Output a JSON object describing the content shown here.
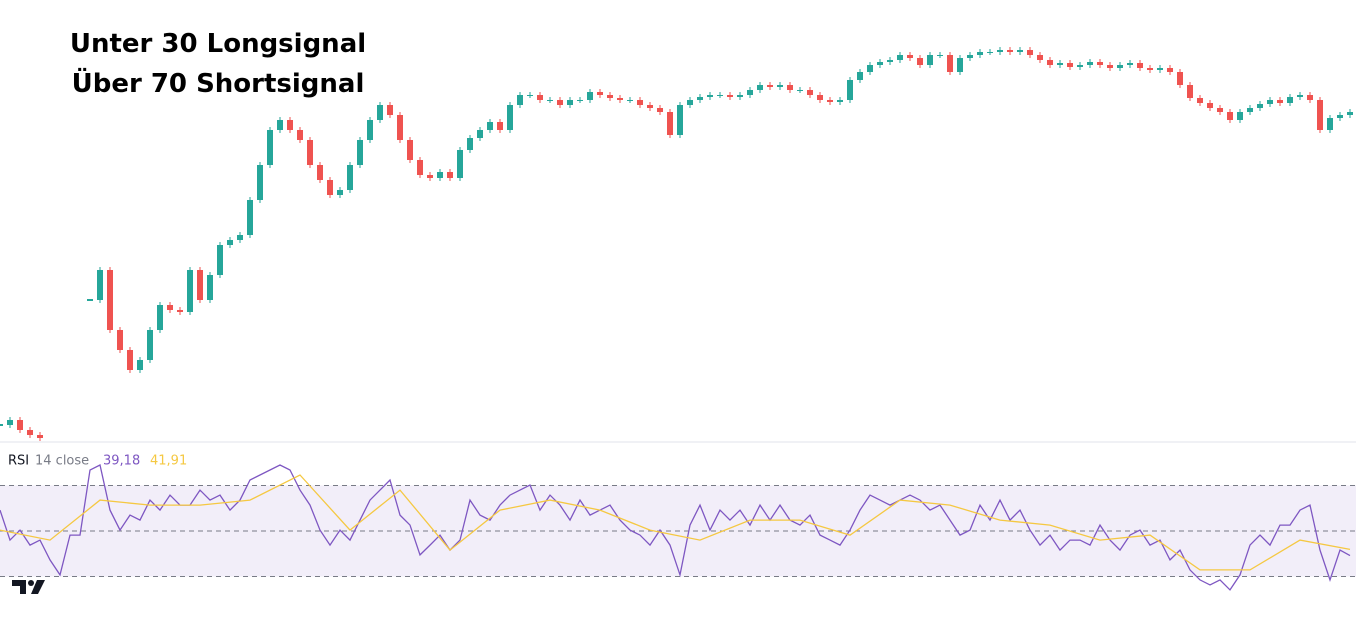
{
  "chart_data": [
    {
      "type": "candlestick",
      "annotations": [
        "Unter 30 Longsignal",
        "Über 70 Shortsignal"
      ],
      "up_color": "#26a69a",
      "down_color": "#ef5350",
      "ylim": [
        0,
        111.25
      ],
      "values": [
        5,
        6.25,
        3.75,
        2.5,
        1.75,
        null,
        null,
        null,
        null,
        36.25,
        43.75,
        28.75,
        23.75,
        18.75,
        21.25,
        28.75,
        35,
        33.75,
        33.25,
        43.75,
        36.25,
        42.5,
        50,
        51.25,
        52.5,
        61.25,
        70,
        78.75,
        81.25,
        78.75,
        76.25,
        70,
        66.25,
        62.5,
        63.75,
        70,
        76.25,
        81.25,
        85,
        82.5,
        76.25,
        71.25,
        67.5,
        66.75,
        68.25,
        66.75,
        73.75,
        76.75,
        78.75,
        80.75,
        78.75,
        85,
        87.5,
        87.5,
        86.25,
        86.25,
        85,
        86.25,
        86.25,
        88.25,
        87.5,
        86.75,
        86.25,
        86.25,
        85,
        84.25,
        83.25,
        77.5,
        85,
        86.25,
        87,
        87.5,
        87.5,
        87,
        87.5,
        88.75,
        90,
        89.5,
        90,
        88.75,
        88.75,
        87.5,
        86.25,
        85.75,
        86.25,
        91.25,
        93.25,
        95,
        95.75,
        96.25,
        97.5,
        96.75,
        95,
        97.5,
        97.5,
        93.25,
        96.75,
        97.5,
        98.25,
        98.25,
        98.75,
        98.25,
        98.75,
        97.5,
        96.25,
        95,
        95.5,
        94.5,
        95,
        95.75,
        95,
        94.25,
        95,
        95.5,
        94.25,
        93.75,
        94.25,
        93.25,
        90,
        86.75,
        85.5,
        84.25,
        83.25,
        81.25,
        83.25,
        84.25,
        85.25,
        86.25,
        85.5,
        87,
        87.5,
        86.25,
        78.75,
        81.75,
        82.5,
        83.25
      ]
    },
    {
      "type": "line",
      "title": "RSI",
      "params": "14 close",
      "ylim": [
        10,
        90
      ],
      "levels": [
        30,
        50,
        70
      ],
      "band_color": "#7e57c2",
      "series": [
        {
          "color": "#7e57c2",
          "last_label": "39,18",
          "values": [
            59.2,
            46.0,
            50.4,
            43.8,
            46.0,
            37.3,
            30.7,
            48.2,
            48.2,
            76.8,
            79.0,
            59.2,
            50.4,
            57.0,
            54.8,
            63.6,
            59.2,
            65.8,
            61.4,
            61.4,
            68.0,
            63.6,
            65.8,
            59.2,
            63.6,
            72.4,
            74.6,
            76.8,
            79.0,
            76.8,
            68.0,
            61.4,
            50.4,
            43.8,
            50.4,
            46.0,
            54.8,
            63.6,
            68.0,
            72.4,
            57.0,
            52.6,
            39.5,
            43.8,
            48.2,
            41.6,
            46.0,
            63.6,
            57.0,
            54.8,
            61.4,
            65.8,
            68.0,
            70.2,
            59.2,
            65.8,
            61.4,
            54.8,
            63.6,
            57.0,
            59.2,
            61.4,
            54.8,
            50.4,
            48.2,
            43.8,
            50.4,
            43.8,
            30.7,
            52.6,
            61.4,
            50.4,
            59.2,
            54.8,
            59.2,
            52.6,
            61.4,
            54.8,
            61.4,
            54.8,
            52.6,
            57.0,
            48.2,
            46.0,
            43.8,
            50.4,
            59.2,
            65.8,
            63.6,
            61.4,
            63.6,
            65.8,
            63.6,
            59.2,
            61.4,
            54.8,
            48.2,
            50.4,
            61.4,
            54.8,
            63.6,
            54.8,
            59.2,
            50.4,
            43.8,
            48.2,
            41.6,
            46.0,
            46.0,
            43.8,
            52.6,
            46.0,
            41.6,
            48.2,
            50.4,
            43.8,
            46.0,
            37.3,
            41.6,
            32.9,
            28.5,
            26.3,
            28.5,
            24.1,
            30.7,
            43.8,
            48.2,
            43.8,
            52.6,
            52.6,
            59.2,
            61.4,
            41.6,
            28.5,
            41.6,
            39.18
          ]
        },
        {
          "color": "#f5c842",
          "last_label": "41,91",
          "values": [
            50.4,
            46.0,
            63.6,
            61.4,
            61.4,
            63.6,
            74.6,
            50.4,
            68.0,
            41.6,
            59.2,
            63.6,
            59.2,
            50.4,
            46.0,
            54.8,
            54.8,
            48.2,
            63.6,
            61.4,
            54.8,
            52.6,
            46.0,
            48.2,
            32.9,
            32.9,
            46.0,
            41.91
          ]
        }
      ]
    }
  ]
}
